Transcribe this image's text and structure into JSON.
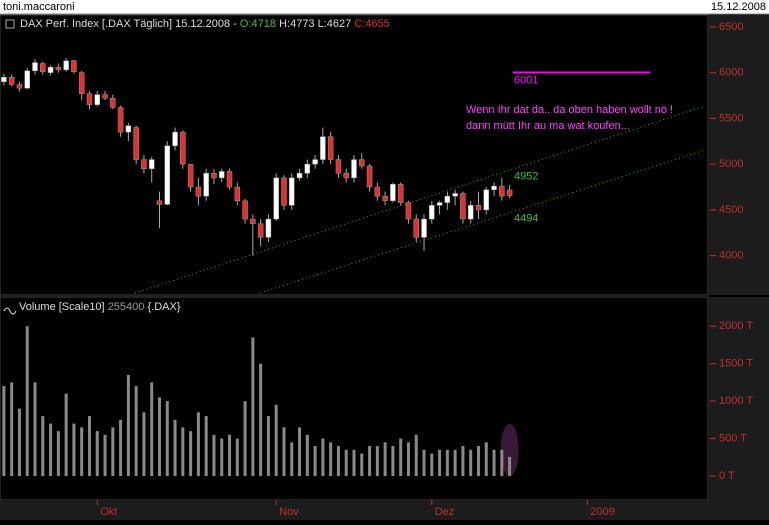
{
  "header": {
    "user": "toni.maccaroni",
    "date": "15.12.2008"
  },
  "chart_data": [
    {
      "type": "candlestick",
      "title": "DAX Perf. Index [.DAX  Täglich] 15.12.2008 -",
      "open_label": "O:4718",
      "hl_label": "H:4773 L:4627",
      "close_label": "C:4655",
      "open": [
        5900,
        5950,
        5870,
        5830,
        6020,
        6100,
        6000,
        6060,
        6030,
        6130,
        6000,
        5770,
        5650,
        5760,
        5720,
        5620,
        5350,
        5400,
        5050,
        4950,
        4600,
        4560,
        5200,
        5350,
        5000,
        4750,
        4650,
        4900,
        4850,
        4920,
        4750,
        4600,
        4400,
        4350,
        4200,
        4400,
        4850,
        4550,
        4850,
        4900,
        5000,
        5050,
        5300,
        5050,
        4900,
        4850,
        5050,
        4980,
        4750,
        4650,
        4600,
        4780,
        4580,
        4400,
        4200,
        4400,
        4550,
        4580,
        4650,
        4680,
        4400,
        4550,
        4500,
        4720,
        4760,
        4718
      ],
      "high": [
        5990,
        5980,
        5900,
        6050,
        6150,
        6120,
        6080,
        6100,
        6160,
        6140,
        6020,
        5800,
        5800,
        5800,
        5760,
        5640,
        5450,
        5420,
        5100,
        5080,
        4700,
        5250,
        5400,
        5370,
        5000,
        4850,
        4950,
        4950,
        4950,
        4950,
        4800,
        4620,
        4450,
        4400,
        4450,
        4900,
        4880,
        4900,
        4950,
        5050,
        5100,
        5400,
        5350,
        5100,
        4950,
        5100,
        5120,
        5000,
        4800,
        4700,
        4800,
        4800,
        4600,
        4450,
        4450,
        4600,
        4600,
        4700,
        4720,
        4700,
        4600,
        4700,
        4750,
        4800,
        4850,
        4773
      ],
      "low": [
        5860,
        5850,
        5790,
        5820,
        5980,
        5980,
        5970,
        6000,
        6010,
        5990,
        5700,
        5600,
        5630,
        5700,
        5600,
        5300,
        5250,
        5000,
        4900,
        4800,
        4300,
        4550,
        5150,
        4950,
        4700,
        4550,
        4600,
        4780,
        4800,
        4720,
        4550,
        4350,
        4000,
        4100,
        4150,
        4380,
        4500,
        4500,
        4820,
        4850,
        4950,
        5000,
        5000,
        4850,
        4800,
        4800,
        4950,
        4700,
        4600,
        4550,
        4580,
        4550,
        4350,
        4150,
        4050,
        4350,
        4450,
        4500,
        4550,
        4350,
        4350,
        4400,
        4450,
        4650,
        4600,
        4627
      ],
      "close": [
        5950,
        5870,
        5830,
        6020,
        6110,
        6010,
        6060,
        6030,
        6130,
        6010,
        5770,
        5650,
        5760,
        5720,
        5620,
        5350,
        5420,
        5050,
        4950,
        5050,
        4560,
        5200,
        5350,
        5000,
        4750,
        4650,
        4900,
        4850,
        4920,
        4750,
        4600,
        4400,
        4350,
        4200,
        4400,
        4850,
        4550,
        4850,
        4900,
        5000,
        5050,
        5300,
        5050,
        4900,
        4850,
        5050,
        4980,
        4750,
        4650,
        4600,
        4780,
        4580,
        4400,
        4200,
        4400,
        4550,
        4580,
        4650,
        4680,
        4400,
        4550,
        4500,
        4720,
        4760,
        4650,
        4655
      ],
      "up_color": "#ffffff",
      "down_color": "#e03030",
      "xlim": [
        -0.5,
        90.5
      ],
      "ylim": [
        3570,
        6630
      ],
      "yticks": [
        4000,
        4500,
        5000,
        5500,
        6000,
        6500
      ],
      "levels": [
        {
          "value": 6001,
          "color": "#ff00ff"
        },
        {
          "value": 4952,
          "color": "#40c040"
        },
        {
          "value": 4494,
          "color": "#40c040"
        }
      ],
      "annotations": [
        "Wenn Ihr dat da.. da oben haben wollt nö !",
        "dann mütt Ihr au ma wat koufen..."
      ]
    },
    {
      "type": "bar",
      "title": "Volume [Scale10]",
      "last_label": "255400",
      "symbol": "{.DAX}",
      "color": "#8a8a8a",
      "values": [
        1200,
        1250,
        900,
        2000,
        1250,
        800,
        700,
        600,
        1100,
        700,
        650,
        800,
        600,
        550,
        650,
        750,
        1350,
        1200,
        850,
        1250,
        1050,
        1000,
        750,
        650,
        600,
        850,
        800,
        550,
        500,
        550,
        500,
        1000,
        1850,
        1500,
        800,
        950,
        650,
        450,
        650,
        550,
        400,
        500,
        450,
        400,
        350,
        350,
        300,
        400,
        400,
        450,
        400,
        500,
        450,
        550,
        350,
        300,
        350,
        350,
        350,
        400,
        350,
        400,
        450,
        350,
        350,
        255.4
      ],
      "xlim": [
        -0.5,
        90.5
      ],
      "ylim": [
        -320,
        2390
      ],
      "yticks": [
        {
          "value": 0,
          "label": "0 T"
        },
        {
          "value": 500,
          "label": "500 T"
        },
        {
          "value": 1000,
          "label": "1000 T"
        },
        {
          "value": 1500,
          "label": "1500 T"
        },
        {
          "value": 2000,
          "label": "2000 T"
        }
      ],
      "xticks": [
        {
          "value": 12,
          "label": "Okt"
        },
        {
          "value": 35,
          "label": "Nov"
        },
        {
          "value": 55,
          "label": "Dez"
        },
        {
          "value": 75,
          "label": "2009"
        }
      ]
    }
  ]
}
